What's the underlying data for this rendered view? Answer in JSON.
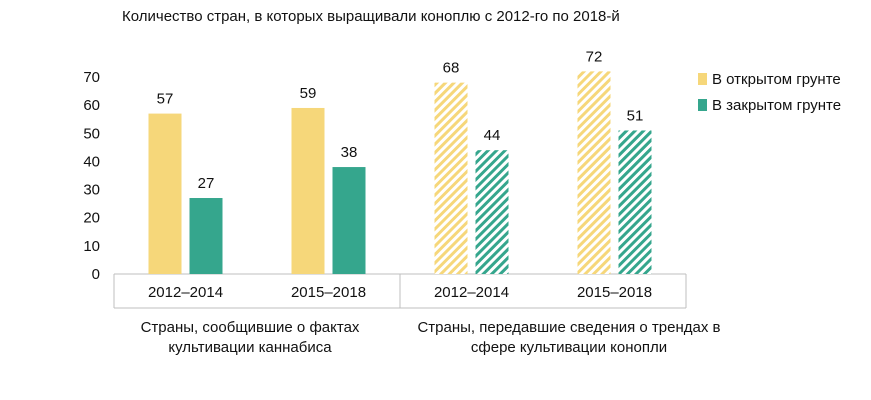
{
  "title": "Количество стран, в которых выращивали коноплю с 2012-го по 2018-й",
  "colors": {
    "open": "#f6d77a",
    "closed": "#35a68d",
    "axis": "#bfbfbf"
  },
  "legend": [
    {
      "label": "В открытом грунте",
      "color": "#f6d77a"
    },
    {
      "label": "В закрытом грунте",
      "color": "#35a68d"
    }
  ],
  "groups": [
    {
      "caption": "Страны, сообщившие о фактах культивации каннабиса"
    },
    {
      "caption": "Страны, передавшие сведения о трендах в сфере культивации конопли"
    }
  ],
  "chart_data": {
    "type": "bar",
    "title": "Количество стран, в которых выращивали коноплю с 2012-го по 2018-й",
    "categories": [
      "2012–2014",
      "2015–2018",
      "2012–2014",
      "2015–2018"
    ],
    "series": [
      {
        "name": "В открытом грунте",
        "values": [
          57,
          59,
          68,
          72
        ],
        "color": "#f6d77a"
      },
      {
        "name": "В закрытом грунте",
        "values": [
          27,
          38,
          44,
          51
        ],
        "color": "#35a68d"
      }
    ],
    "hatched_categories": [
      false,
      false,
      true,
      true
    ],
    "yticks": [
      0,
      10,
      20,
      30,
      40,
      50,
      60,
      70
    ],
    "ylim": [
      0,
      70
    ],
    "legend_position": "right",
    "grid": false
  }
}
